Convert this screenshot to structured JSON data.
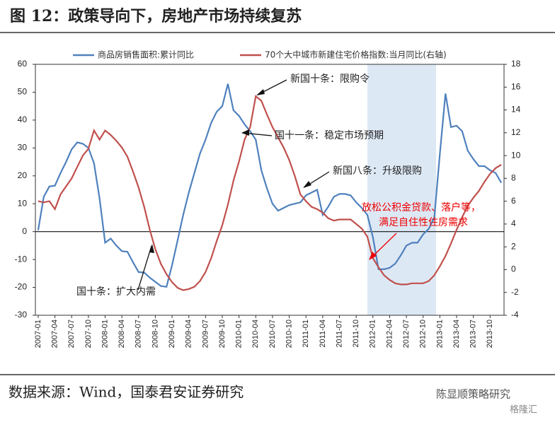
{
  "chart_data": {
    "type": "line",
    "title": "图 12：政策导向下，房地产市场持续复苏",
    "source": "数据来源：Wind，国泰君安证券研究",
    "watermark": [
      "陈显顺策略研究",
      "格隆汇"
    ],
    "annotations": [
      "新国十条：限购令",
      "国十一条：稳定市场预期",
      "新国八条：升级限购",
      "放松公积金贷款、落户等，",
      "满足自住性住房需求",
      "国十条：扩大内需"
    ],
    "categories": [
      "2007-01",
      null,
      null,
      "2007-04",
      null,
      null,
      "2007-07",
      null,
      null,
      "2007-10",
      null,
      null,
      "2008-01",
      null,
      null,
      "2008-04",
      null,
      null,
      "2008-07",
      null,
      null,
      "2008-10",
      null,
      null,
      "2009-01",
      null,
      null,
      "2009-04",
      null,
      null,
      "2009-07",
      null,
      null,
      "2009-10",
      null,
      null,
      "2010-01",
      null,
      null,
      "2010-04",
      null,
      null,
      "2010-07",
      null,
      null,
      "2010-10",
      null,
      null,
      "2011-01",
      null,
      null,
      "2011-04",
      null,
      null,
      "2011-07",
      null,
      null,
      "2011-10",
      null,
      null,
      "2012-01",
      null,
      null,
      "2012-04",
      null,
      null,
      "2012-07",
      null,
      null,
      "2012-10",
      null,
      null,
      "2013-01",
      null,
      null,
      "2013-04",
      null,
      null,
      "2013-07",
      null,
      null,
      "2013-10",
      null,
      null
    ],
    "series": [
      {
        "name": "商品房销售面积:累计同比",
        "color": "#4f81bd",
        "values": [
          0.5,
          12.5,
          16.2,
          16.5,
          21,
          25,
          29.5,
          32,
          31.5,
          30,
          24.5,
          12,
          -4,
          -2.5,
          -5,
          -7,
          -7.2,
          -11,
          -14.5,
          -14.7,
          -16.5,
          -18,
          -19.5,
          -19.8,
          -12,
          -3,
          6,
          14,
          21,
          28,
          33,
          39,
          43,
          45,
          53,
          43.5,
          41.5,
          38.5,
          36,
          33,
          22,
          15.5,
          10,
          7.5,
          8.5,
          9.5,
          10,
          10.5,
          13,
          14,
          15,
          6,
          9,
          12.5,
          13.5,
          13.5,
          13,
          10.5,
          8.5,
          6,
          -2,
          -13.5,
          -13.5,
          -13,
          -11.5,
          -8.5,
          -5,
          -4,
          -4,
          -1,
          1,
          5,
          28,
          49.5,
          37.5,
          38,
          36,
          29,
          26,
          23.5,
          23.5,
          22,
          21,
          17.5
        ]
      },
      {
        "name": "70个大中城市新建住宅价格指数:当月同比(右轴)",
        "color": "#c0504d",
        "axis": "y2",
        "values": [
          6.0,
          5.9,
          6.0,
          5.3,
          6.6,
          7.3,
          8.0,
          9.0,
          10.0,
          10.6,
          12.2,
          11.4,
          12.2,
          11.8,
          11.3,
          10.7,
          9.9,
          8.6,
          7.2,
          5.5,
          3.5,
          1.8,
          0.5,
          -0.4,
          -1.1,
          -1.6,
          -1.8,
          -1.7,
          -1.5,
          -1.0,
          -0.2,
          1.0,
          2.5,
          3.9,
          5.7,
          7.8,
          9.5,
          11.4,
          12.5,
          15.2,
          14.8,
          13.6,
          12.5,
          11.6,
          10.7,
          9.6,
          8.2,
          6.6,
          6.0,
          5.5,
          5.3,
          5.0,
          4.5,
          4.3,
          4.4,
          4.4,
          4.4,
          4.0,
          3.6,
          2.9,
          1.0,
          0.2,
          -0.5,
          -0.9,
          -1.2,
          -1.3,
          -1.3,
          -1.2,
          -1.2,
          -1.2,
          -1.0,
          -0.5,
          0.3,
          1.2,
          2.3,
          3.5,
          4.6,
          5.6,
          6.3,
          6.9,
          7.7,
          8.4,
          8.9,
          9.2
        ]
      }
    ],
    "ylim": [
      -30,
      60
    ],
    "yticks": [
      -30,
      -20,
      -10,
      0,
      10,
      20,
      30,
      40,
      50,
      60
    ],
    "y2lim": [
      -4,
      18
    ],
    "y2ticks": [
      -4,
      -2,
      0,
      2,
      4,
      6,
      8,
      10,
      12,
      14,
      16,
      18
    ]
  }
}
